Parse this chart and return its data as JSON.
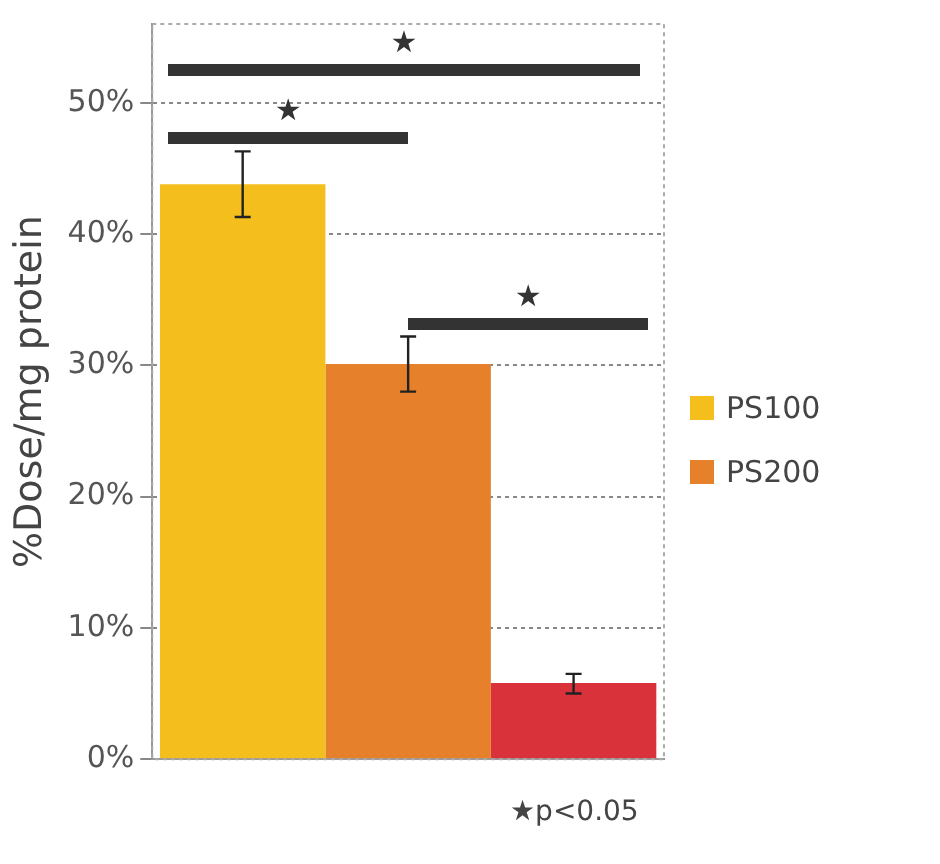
{
  "chart_data": {
    "type": "bar",
    "ylabel": "%Dose/mg protein",
    "categories": [
      null
    ],
    "series": [
      {
        "name": "PS100",
        "color": "#f4bf1c",
        "values": [
          43.8
        ],
        "errors": [
          [
            41.3,
            46.3
          ]
        ]
      },
      {
        "name": "PS200",
        "color": "#e6802a",
        "values": [
          30.1
        ],
        "errors": [
          [
            28,
            32.2
          ]
        ]
      },
      {
        "color": "#d9323a",
        "values": [
          5.8
        ],
        "errors": [
          [
            5,
            6.5
          ]
        ]
      }
    ],
    "ylim": [
      0,
      56
    ],
    "yticks": [
      {
        "value": 0,
        "label": "0%"
      },
      {
        "value": 10,
        "label": "10%"
      },
      {
        "value": 20,
        "label": "20%"
      },
      {
        "value": 30,
        "label": "30%"
      },
      {
        "value": 40,
        "label": "40%"
      },
      {
        "value": 50,
        "label": "50%"
      }
    ],
    "grid": "y",
    "legend": "right",
    "annotations": [
      "★",
      "★",
      "★",
      "★p<0.05"
    ]
  }
}
